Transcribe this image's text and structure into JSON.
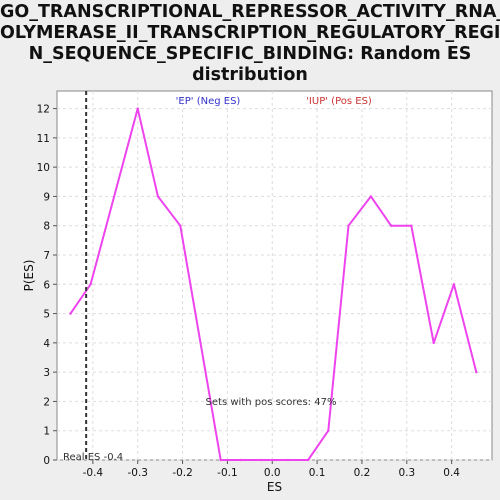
{
  "chart_data": {
    "type": "line",
    "title_lines": [
      "GO_TRANSCRIPTIONAL_REPRESSOR_ACTIVITY_RNA_P",
      "OLYMERASE_II_TRANSCRIPTION_REGULATORY_REGIO",
      "N_SEQUENCE_SPECIFIC_BINDING: Random ES",
      "distribution"
    ],
    "xlabel": "ES",
    "ylabel": "P(ES)",
    "xlim": [
      -0.48,
      0.49
    ],
    "ylim": [
      0,
      12.6
    ],
    "x_ticks": [
      "-0.4",
      "-0.3",
      "-0.2",
      "-0.1",
      "0.0",
      "0.1",
      "0.2",
      "0.3",
      "0.4"
    ],
    "y_ticks": [
      "0",
      "1",
      "2",
      "3",
      "4",
      "5",
      "6",
      "7",
      "8",
      "9",
      "10",
      "11",
      "12"
    ],
    "grid": true,
    "series": [
      {
        "color": "#ee44ee",
        "x": [
          -0.45,
          -0.405,
          -0.3,
          -0.255,
          -0.205,
          -0.115,
          -0.07,
          -0.025,
          0.035,
          0.08,
          0.125,
          0.17,
          0.22,
          0.265,
          0.31,
          0.36,
          0.405,
          0.455
        ],
        "y": [
          5,
          6,
          12,
          9,
          8,
          0,
          0,
          0,
          0,
          0,
          1,
          8,
          9,
          8,
          8,
          4,
          6,
          3
        ]
      }
    ],
    "real_es": {
      "x": -0.415,
      "label": "Real ES -0.4"
    },
    "annotations": {
      "neg_label": "'EP' (Neg ES)",
      "neg_color": "#3333cc",
      "pos_label": "'IUP' (Pos ES)",
      "pos_color": "#cc3333",
      "pos_scores_label": "Sets with pos scores: 47%"
    }
  }
}
